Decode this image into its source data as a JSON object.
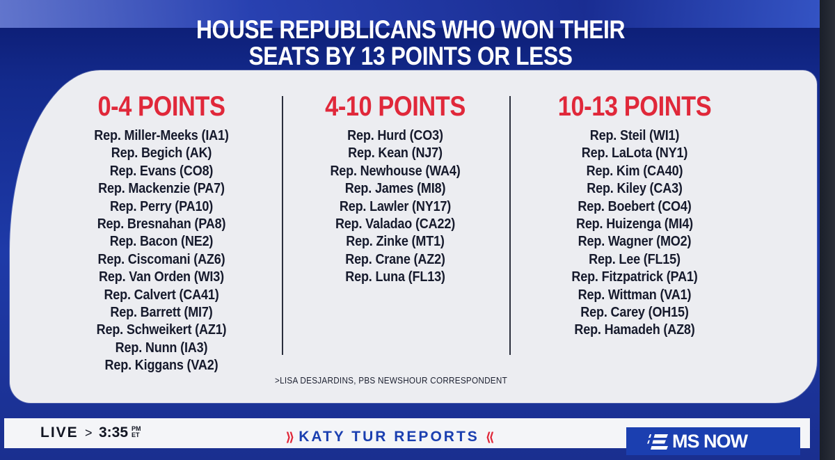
{
  "headline": {
    "line1": "HOUSE REPUBLICANS WHO WON THEIR",
    "line2": "SEATS BY 13 POINTS OR LESS"
  },
  "columns": [
    {
      "heading": "0-4 POINTS",
      "names": [
        "Rep. Miller-Meeks (IA1)",
        "Rep. Begich (AK)",
        "Rep. Evans (CO8)",
        "Rep. Mackenzie (PA7)",
        "Rep. Perry (PA10)",
        "Rep. Bresnahan (PA8)",
        "Rep. Bacon (NE2)",
        "Rep. Ciscomani (AZ6)",
        "Rep. Van Orden (WI3)",
        "Rep. Calvert (CA41)",
        "Rep. Barrett (MI7)",
        "Rep. Schweikert (AZ1)",
        "Rep. Nunn (IA3)",
        "Rep. Kiggans (VA2)"
      ]
    },
    {
      "heading": "4-10 POINTS",
      "names": [
        "Rep. Hurd (CO3)",
        "Rep. Kean (NJ7)",
        "Rep. Newhouse (WA4)",
        "Rep. James (MI8)",
        "Rep. Lawler (NY17)",
        "Rep. Valadao (CA22)",
        "Rep. Zinke (MT1)",
        "Rep. Crane (AZ2)",
        "Rep. Luna (FL13)"
      ]
    },
    {
      "heading": "10-13 POINTS",
      "names": [
        "Rep. Steil (WI1)",
        "Rep. LaLota (NY1)",
        "Rep. Kim (CA40)",
        "Rep. Kiley (CA3)",
        "Rep. Boebert (CO4)",
        "Rep. Huizenga (MI4)",
        "Rep. Wagner (MO2)",
        "Rep. Lee (FL15)",
        "Rep. Fitzpatrick (PA1)",
        "Rep. Wittman (VA1)",
        "Rep. Carey (OH15)",
        "Rep. Hamadeh (AZ8)"
      ]
    }
  ],
  "credit": ">LISA DESJARDINS, PBS NEWSHOUR CORRESPONDENT",
  "ticker": {
    "live": "LIVE",
    "arrow": ">",
    "time": "3:35",
    "ampm": "PM",
    "tz": "ET",
    "show_left_chevrons": "⟫",
    "show_name": "KATY TUR REPORTS",
    "show_right_chevrons": "⟪"
  },
  "brand": {
    "name": "MS NOW",
    "icon": "msnow-logo-icon",
    "color": "#1b3fb0"
  },
  "colors": {
    "accent_red": "#e0283a",
    "panel": "#ecedf1",
    "background_blue": "#1e3aa8"
  }
}
